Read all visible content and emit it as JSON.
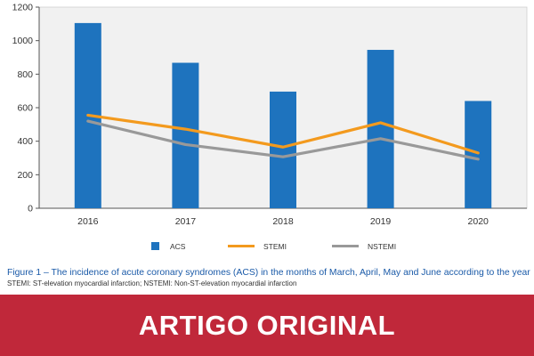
{
  "chart_data": {
    "type": "bar+line",
    "categories": [
      "2016",
      "2017",
      "2018",
      "2019",
      "2020"
    ],
    "ylim": [
      0,
      1200
    ],
    "yticks": [
      0,
      200,
      400,
      600,
      800,
      1000,
      1200
    ],
    "grid": false,
    "legend_position": "bottom",
    "series": [
      {
        "name": "ACS",
        "type": "bar",
        "color": "#1e73be",
        "values": [
          1105,
          868,
          696,
          945,
          640
        ]
      },
      {
        "name": "STEMI",
        "type": "line",
        "color": "#f39a1e",
        "values": [
          555,
          472,
          365,
          510,
          330
        ]
      },
      {
        "name": "NSTEMI",
        "type": "line",
        "color": "#999999",
        "values": [
          520,
          380,
          307,
          415,
          293
        ]
      }
    ],
    "plot_background": "#f1f1f1"
  },
  "caption": {
    "main": "Figure 1 – The incidence of acute coronary syndromes (ACS) in the months of March, April, May and June according to the year",
    "note": "STEMI: ST-elevation myocardial infarction; NSTEMI: Non-ST-elevation myocardial infarction"
  },
  "banner": {
    "text": "ARTIGO ORIGINAL",
    "color": "#c0283a"
  }
}
